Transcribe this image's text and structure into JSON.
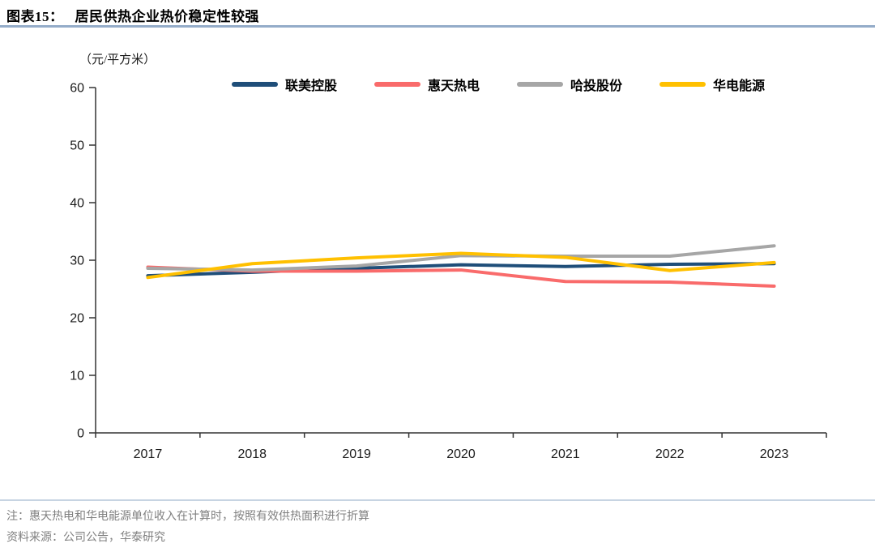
{
  "header": {
    "title_prefix": "图表15：",
    "title": "居民供热企业热价稳定性较强"
  },
  "chart": {
    "unit_label": "（元/平方米）"
  },
  "chart_data": {
    "type": "line",
    "title": "居民供热企业热价稳定性较强",
    "xlabel": "",
    "ylabel": "（元/平方米）",
    "categories": [
      "2017",
      "2018",
      "2019",
      "2020",
      "2021",
      "2022",
      "2023"
    ],
    "series": [
      {
        "name": "联美控股",
        "color": "#1F4E79",
        "values": [
          27.3,
          27.9,
          28.6,
          29.2,
          28.9,
          29.3,
          29.4
        ]
      },
      {
        "name": "惠天热电",
        "color": "#F96B6B",
        "values": [
          28.8,
          28.1,
          28.1,
          28.3,
          26.3,
          26.2,
          25.5
        ]
      },
      {
        "name": "哈投股份",
        "color": "#A6A6A6",
        "values": [
          28.6,
          28.3,
          29.0,
          30.8,
          30.7,
          30.7,
          32.5
        ]
      },
      {
        "name": "华电能源",
        "color": "#FFC000",
        "values": [
          27.0,
          29.4,
          30.4,
          31.2,
          30.5,
          28.2,
          29.6
        ]
      }
    ],
    "ylim": [
      0,
      60
    ],
    "ytick_step": 10,
    "grid": false,
    "legend_position": "top"
  },
  "colors": {
    "title_rule": "#94ACC9",
    "footer_rule": "#C7D4E2",
    "axis": "#333333",
    "tick_label": "#1a1a1a"
  },
  "footer": {
    "note": "注：惠天热电和华电能源单位收入在计算时，按照有效供热面积进行折算",
    "source": "资料来源：公司公告，华泰研究"
  }
}
